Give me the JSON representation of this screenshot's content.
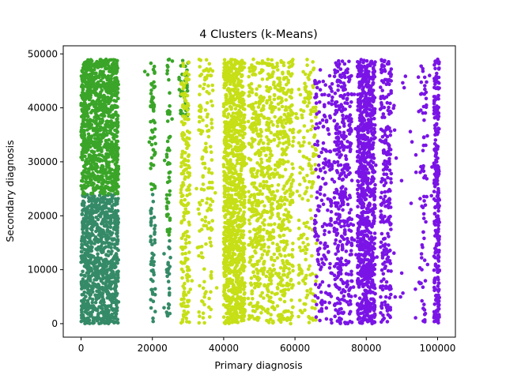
{
  "chart_data": {
    "type": "scatter",
    "title": "4 Clusters (k-Means)",
    "xlabel": "Primary diagnosis",
    "ylabel": "Secondary diagnosis",
    "xlim": [
      -5000,
      105000
    ],
    "ylim": [
      -2500,
      51500
    ],
    "xticks": [
      0,
      20000,
      40000,
      60000,
      80000,
      100000
    ],
    "yticks": [
      0,
      10000,
      20000,
      30000,
      40000,
      50000
    ],
    "xtick_labels": [
      "0",
      "20000",
      "40000",
      "60000",
      "80000",
      "100000"
    ],
    "ytick_labels": [
      "0",
      "10000",
      "20000",
      "30000",
      "40000",
      "50000"
    ],
    "grid": false,
    "legend": "none",
    "colors": {
      "cluster_dark_green": "#358a67",
      "cluster_green": "#3aa528",
      "cluster_yellow_green": "#c6df16",
      "cluster_purple": "#7a14e6"
    },
    "series": [
      {
        "color": "#358a67",
        "marker": "circle",
        "bands": [
          {
            "x": [
              0,
              10500
            ],
            "y": [
              0,
              24000
            ],
            "density": "solid"
          },
          {
            "x": [
              19500,
              20800
            ],
            "y": [
              0,
              24000
            ],
            "density": "dense"
          },
          {
            "x": [
              24000,
              25000
            ],
            "y": [
              0,
              16000
            ],
            "density": "dense"
          },
          {
            "x": [
              23000,
              25500
            ],
            "y": [
              0,
              24000
            ],
            "density": "sparse"
          }
        ]
      },
      {
        "color": "#3aa528",
        "marker": "circle",
        "bands": [
          {
            "x": [
              0,
              10500
            ],
            "y": [
              24000,
              49000
            ],
            "density": "solid"
          },
          {
            "x": [
              19500,
              20800
            ],
            "y": [
              24000,
              49000
            ],
            "density": "dense"
          },
          {
            "x": [
              24000,
              25000
            ],
            "y": [
              16000,
              49000
            ],
            "density": "dense"
          },
          {
            "x": [
              27500,
              30000
            ],
            "y": [
              38000,
              49000
            ],
            "density": "dense"
          },
          {
            "x": [
              17500,
              26000
            ],
            "y": [
              24000,
              49000
            ],
            "density": "sparse"
          }
        ]
      },
      {
        "color": "#c6df16",
        "marker": "circle",
        "bands": [
          {
            "x": [
              28000,
              30500
            ],
            "y": [
              0,
              49000
            ],
            "density": "dense"
          },
          {
            "x": [
              33000,
              37000
            ],
            "y": [
              0,
              49000
            ],
            "density": "medium"
          },
          {
            "x": [
              40000,
              46000
            ],
            "y": [
              0,
              49000
            ],
            "density": "solid"
          },
          {
            "x": [
              47000,
              51500
            ],
            "y": [
              0,
              49000
            ],
            "density": "dense"
          },
          {
            "x": [
              52000,
              54500
            ],
            "y": [
              0,
              49000
            ],
            "density": "dense"
          },
          {
            "x": [
              55000,
              59500
            ],
            "y": [
              0,
              49000
            ],
            "density": "dense"
          },
          {
            "x": [
              61000,
              66000
            ],
            "y": [
              0,
              49000
            ],
            "density": "medium"
          },
          {
            "x": [
              28000,
              66000
            ],
            "y": [
              0,
              49000
            ],
            "density": "sparse"
          }
        ]
      },
      {
        "color": "#7a14e6",
        "marker": "circle",
        "bands": [
          {
            "x": [
              65500,
              70500
            ],
            "y": [
              0,
              49000
            ],
            "density": "medium"
          },
          {
            "x": [
              71000,
              76000
            ],
            "y": [
              0,
              49000
            ],
            "density": "dense"
          },
          {
            "x": [
              77500,
              82500
            ],
            "y": [
              0,
              49000
            ],
            "density": "solid"
          },
          {
            "x": [
              84000,
              87000
            ],
            "y": [
              0,
              49000
            ],
            "density": "dense"
          },
          {
            "x": [
              95000,
              97000
            ],
            "y": [
              0,
              49000
            ],
            "density": "medium"
          },
          {
            "x": [
              99000,
              100500
            ],
            "y": [
              0,
              49000
            ],
            "density": "solid"
          },
          {
            "x": [
              65500,
              100500
            ],
            "y": [
              0,
              49000
            ],
            "density": "sparse"
          }
        ]
      }
    ]
  }
}
